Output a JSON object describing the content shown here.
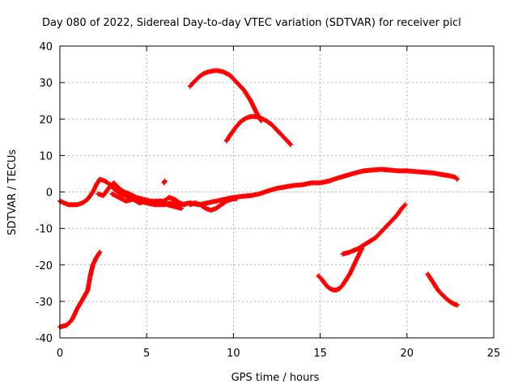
{
  "chart_data": {
    "type": "scatter",
    "title": "Day 080 of 2022, Sidereal Day-to-day VTEC variation (SDTVAR) for receiver picl",
    "xlabel": "GPS time / hours",
    "ylabel": "SDTVAR / TECUs",
    "xlim": [
      0,
      25
    ],
    "ylim": [
      -40,
      40
    ],
    "x_ticks": [
      0,
      5,
      10,
      15,
      20,
      25
    ],
    "y_ticks": [
      -40,
      -30,
      -20,
      -10,
      0,
      10,
      20,
      30,
      40
    ],
    "grid": true,
    "marker": "+",
    "color": "#ff0000",
    "series": [
      {
        "name": "track-1",
        "points": [
          [
            0,
            -37
          ],
          [
            0.4,
            -36.5
          ],
          [
            0.7,
            -35
          ],
          [
            1.0,
            -32
          ],
          [
            1.3,
            -29.5
          ],
          [
            1.6,
            -27
          ],
          [
            1.75,
            -23
          ],
          [
            1.9,
            -20
          ],
          [
            2.1,
            -18
          ],
          [
            2.3,
            -16.5
          ]
        ]
      },
      {
        "name": "track-2",
        "points": [
          [
            0,
            -2.5
          ],
          [
            0.5,
            -3.5
          ],
          [
            1,
            -3.5
          ],
          [
            1.3,
            -3
          ],
          [
            1.6,
            -2
          ],
          [
            1.9,
            0
          ],
          [
            2.1,
            2
          ],
          [
            2.3,
            3.5
          ],
          [
            2.6,
            3
          ],
          [
            2.9,
            2
          ],
          [
            3.2,
            0.5
          ],
          [
            3.5,
            -0.5
          ],
          [
            3.8,
            -1
          ],
          [
            4.0,
            -1.8
          ],
          [
            4.3,
            -2
          ],
          [
            4.6,
            -2.5
          ],
          [
            5,
            -3
          ],
          [
            5.5,
            -3.5
          ],
          [
            6,
            -3.5
          ],
          [
            6.5,
            -3
          ],
          [
            7,
            -3.5
          ],
          [
            7.5,
            -3
          ],
          [
            8,
            -3.5
          ],
          [
            8.5,
            -3
          ],
          [
            9,
            -2.5
          ],
          [
            9.5,
            -2
          ],
          [
            10,
            -1.5
          ],
          [
            10.5,
            -1.2
          ],
          [
            11,
            -1
          ],
          [
            11.5,
            -0.5
          ],
          [
            12,
            0.3
          ],
          [
            12.5,
            1
          ],
          [
            13,
            1.4
          ],
          [
            13.5,
            1.8
          ],
          [
            14,
            2
          ],
          [
            14.5,
            2.5
          ],
          [
            15,
            2.5
          ],
          [
            15.5,
            3
          ],
          [
            16,
            3.8
          ],
          [
            16.5,
            4.5
          ],
          [
            17,
            5.2
          ],
          [
            17.5,
            5.8
          ],
          [
            18,
            6
          ],
          [
            18.5,
            6.2
          ],
          [
            19,
            6
          ],
          [
            19.5,
            5.8
          ],
          [
            20,
            5.8
          ],
          [
            20.5,
            5.6
          ],
          [
            21,
            5.4
          ],
          [
            21.5,
            5.2
          ],
          [
            22,
            4.8
          ],
          [
            22.5,
            4.4
          ],
          [
            22.8,
            4.0
          ],
          [
            22.9,
            3.5
          ]
        ]
      },
      {
        "name": "track-3",
        "points": [
          [
            2.2,
            -0.5
          ],
          [
            2.5,
            -1
          ],
          [
            2.8,
            1
          ],
          [
            3.1,
            2.5
          ],
          [
            3.4,
            1
          ],
          [
            3.7,
            0
          ],
          [
            4.0,
            -0.5
          ],
          [
            4.4,
            -1.5
          ],
          [
            4.8,
            -2
          ],
          [
            5.2,
            -2.5
          ],
          [
            5.6,
            -2.5
          ],
          [
            6.0,
            -2.5
          ],
          [
            6.3,
            -1.5
          ],
          [
            6.6,
            -2
          ],
          [
            6.9,
            -3
          ],
          [
            7.2,
            -3.5
          ]
        ]
      },
      {
        "name": "track-4",
        "points": [
          [
            3.0,
            -0.5
          ],
          [
            3.4,
            -1.5
          ],
          [
            3.8,
            -2.5
          ],
          [
            4.2,
            -2
          ],
          [
            4.6,
            -3
          ],
          [
            5.0,
            -2.5
          ],
          [
            5.4,
            -3
          ],
          [
            5.8,
            -2.5
          ],
          [
            6.2,
            -3.5
          ],
          [
            6.6,
            -4
          ],
          [
            7.0,
            -4.5
          ]
        ]
      },
      {
        "name": "track-5",
        "points": [
          [
            7.5,
            -3.5
          ],
          [
            7.8,
            -3
          ],
          [
            8.1,
            -3.5
          ],
          [
            8.4,
            -4.5
          ],
          [
            8.7,
            -5
          ],
          [
            9.0,
            -4.5
          ],
          [
            9.3,
            -3.5
          ],
          [
            9.6,
            -2.5
          ],
          [
            9.9,
            -2
          ],
          [
            10.2,
            -1.8
          ]
        ]
      },
      {
        "name": "track-6",
        "points": [
          [
            6.0,
            2.5
          ],
          [
            6.05,
            3
          ]
        ]
      },
      {
        "name": "track-7",
        "points": [
          [
            7.5,
            29
          ],
          [
            7.7,
            30
          ],
          [
            8.0,
            31.5
          ],
          [
            8.3,
            32.5
          ],
          [
            8.6,
            33
          ],
          [
            9.0,
            33.3
          ],
          [
            9.4,
            33
          ],
          [
            9.8,
            32
          ],
          [
            10.2,
            30
          ],
          [
            10.6,
            28
          ],
          [
            11.0,
            25
          ],
          [
            11.3,
            22
          ],
          [
            11.6,
            19.5
          ]
        ]
      },
      {
        "name": "track-8",
        "points": [
          [
            9.6,
            14
          ],
          [
            9.8,
            15.5
          ],
          [
            10.1,
            17.5
          ],
          [
            10.4,
            19.2
          ],
          [
            10.7,
            20.2
          ],
          [
            11.0,
            20.7
          ],
          [
            11.3,
            20.7
          ],
          [
            11.6,
            20.2
          ],
          [
            11.9,
            19.5
          ],
          [
            12.2,
            18.5
          ],
          [
            12.5,
            17
          ],
          [
            12.8,
            15.5
          ],
          [
            13.1,
            14
          ],
          [
            13.3,
            13
          ]
        ]
      },
      {
        "name": "track-9",
        "points": [
          [
            14.9,
            -23
          ],
          [
            15.1,
            -24
          ],
          [
            15.3,
            -25.3
          ],
          [
            15.5,
            -26.3
          ],
          [
            15.7,
            -26.8
          ],
          [
            15.9,
            -26.9
          ],
          [
            16.1,
            -26.5
          ],
          [
            16.3,
            -25.5
          ],
          [
            16.5,
            -24
          ],
          [
            16.7,
            -22.5
          ],
          [
            16.9,
            -20.5
          ],
          [
            17.1,
            -18.5
          ],
          [
            17.3,
            -16.5
          ],
          [
            17.4,
            -15.5
          ]
        ]
      },
      {
        "name": "track-10",
        "points": [
          [
            16.3,
            -17
          ],
          [
            16.7,
            -16.5
          ],
          [
            17.2,
            -15.5
          ],
          [
            17.7,
            -14
          ],
          [
            18.2,
            -12.5
          ],
          [
            18.6,
            -10.5
          ],
          [
            19.0,
            -8.5
          ],
          [
            19.4,
            -6.5
          ],
          [
            19.7,
            -4.5
          ],
          [
            19.9,
            -3.5
          ]
        ]
      },
      {
        "name": "track-11",
        "points": [
          [
            21.2,
            -22.5
          ],
          [
            21.4,
            -24
          ],
          [
            21.6,
            -25.5
          ],
          [
            21.8,
            -27
          ],
          [
            22.1,
            -28.5
          ],
          [
            22.4,
            -29.8
          ],
          [
            22.7,
            -30.7
          ],
          [
            22.9,
            -31
          ]
        ]
      }
    ]
  }
}
